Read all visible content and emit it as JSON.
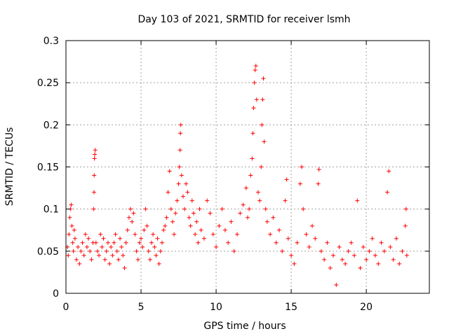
{
  "chart_data": {
    "type": "scatter",
    "title": "Day 103 of 2021, SRMTID for receiver lsmh",
    "xlabel": "GPS time / hours",
    "ylabel": "SRMTID / TECUs",
    "xlim": [
      0,
      24.2
    ],
    "ylim": [
      0,
      0.3
    ],
    "xticks": [
      0,
      5,
      10,
      15,
      20
    ],
    "xtick_labels": [
      "0",
      "5",
      "10",
      "15",
      "20"
    ],
    "yticks": [
      0,
      0.05,
      0.1,
      0.15,
      0.2,
      0.25,
      0.3
    ],
    "ytick_labels": [
      "0",
      "0.05",
      "0.1",
      "0.15",
      "0.2",
      "0.25",
      "0.3"
    ],
    "grid": true,
    "marker": "+",
    "color": "#ff0000",
    "series": [
      {
        "name": "SRMTID",
        "points": [
          [
            0.1,
            0.055
          ],
          [
            0.15,
            0.045
          ],
          [
            0.2,
            0.07
          ],
          [
            0.25,
            0.09
          ],
          [
            0.3,
            0.1
          ],
          [
            0.35,
            0.105
          ],
          [
            0.4,
            0.08
          ],
          [
            0.45,
            0.06
          ],
          [
            0.5,
            0.05
          ],
          [
            0.55,
            0.075
          ],
          [
            0.6,
            0.065
          ],
          [
            0.7,
            0.04
          ],
          [
            0.8,
            0.055
          ],
          [
            0.9,
            0.035
          ],
          [
            1.0,
            0.05
          ],
          [
            1.1,
            0.06
          ],
          [
            1.2,
            0.045
          ],
          [
            1.3,
            0.07
          ],
          [
            1.4,
            0.055
          ],
          [
            1.5,
            0.065
          ],
          [
            1.6,
            0.05
          ],
          [
            1.7,
            0.04
          ],
          [
            1.8,
            0.06
          ],
          [
            1.85,
            0.1
          ],
          [
            1.87,
            0.12
          ],
          [
            1.88,
            0.14
          ],
          [
            1.9,
            0.16
          ],
          [
            1.92,
            0.165
          ],
          [
            1.95,
            0.17
          ],
          [
            2.0,
            0.06
          ],
          [
            2.1,
            0.05
          ],
          [
            2.2,
            0.045
          ],
          [
            2.3,
            0.07
          ],
          [
            2.4,
            0.055
          ],
          [
            2.5,
            0.065
          ],
          [
            2.6,
            0.04
          ],
          [
            2.7,
            0.05
          ],
          [
            2.8,
            0.06
          ],
          [
            2.9,
            0.035
          ],
          [
            3.0,
            0.055
          ],
          [
            3.1,
            0.045
          ],
          [
            3.2,
            0.06
          ],
          [
            3.3,
            0.07
          ],
          [
            3.4,
            0.05
          ],
          [
            3.5,
            0.04
          ],
          [
            3.6,
            0.065
          ],
          [
            3.7,
            0.055
          ],
          [
            3.8,
            0.045
          ],
          [
            3.9,
            0.03
          ],
          [
            4.0,
            0.06
          ],
          [
            4.1,
            0.075
          ],
          [
            4.2,
            0.09
          ],
          [
            4.3,
            0.1
          ],
          [
            4.4,
            0.085
          ],
          [
            4.5,
            0.095
          ],
          [
            4.6,
            0.07
          ],
          [
            4.7,
            0.05
          ],
          [
            4.8,
            0.04
          ],
          [
            4.9,
            0.06
          ],
          [
            5.0,
            0.065
          ],
          [
            5.1,
            0.055
          ],
          [
            5.2,
            0.075
          ],
          [
            5.3,
            0.1
          ],
          [
            5.4,
            0.08
          ],
          [
            5.5,
            0.05
          ],
          [
            5.6,
            0.04
          ],
          [
            5.7,
            0.06
          ],
          [
            5.8,
            0.07
          ],
          [
            5.9,
            0.055
          ],
          [
            6.0,
            0.045
          ],
          [
            6.1,
            0.065
          ],
          [
            6.2,
            0.035
          ],
          [
            6.3,
            0.05
          ],
          [
            6.4,
            0.06
          ],
          [
            6.5,
            0.075
          ],
          [
            6.6,
            0.08
          ],
          [
            6.7,
            0.09
          ],
          [
            6.8,
            0.12
          ],
          [
            6.9,
            0.145
          ],
          [
            7.0,
            0.1
          ],
          [
            7.1,
            0.085
          ],
          [
            7.2,
            0.07
          ],
          [
            7.3,
            0.095
          ],
          [
            7.4,
            0.11
          ],
          [
            7.5,
            0.13
          ],
          [
            7.55,
            0.15
          ],
          [
            7.6,
            0.17
          ],
          [
            7.62,
            0.19
          ],
          [
            7.65,
            0.2
          ],
          [
            7.7,
            0.14
          ],
          [
            7.8,
            0.115
          ],
          [
            7.9,
            0.1
          ],
          [
            8.0,
            0.13
          ],
          [
            8.1,
            0.12
          ],
          [
            8.2,
            0.09
          ],
          [
            8.3,
            0.08
          ],
          [
            8.4,
            0.11
          ],
          [
            8.5,
            0.095
          ],
          [
            8.6,
            0.07
          ],
          [
            8.7,
            0.085
          ],
          [
            8.8,
            0.06
          ],
          [
            8.9,
            0.1
          ],
          [
            9.0,
            0.075
          ],
          [
            9.2,
            0.065
          ],
          [
            9.4,
            0.11
          ],
          [
            9.6,
            0.095
          ],
          [
            9.8,
            0.07
          ],
          [
            10.0,
            0.055
          ],
          [
            10.2,
            0.08
          ],
          [
            10.4,
            0.1
          ],
          [
            10.6,
            0.075
          ],
          [
            10.8,
            0.06
          ],
          [
            11.0,
            0.085
          ],
          [
            11.2,
            0.05
          ],
          [
            11.4,
            0.07
          ],
          [
            11.6,
            0.095
          ],
          [
            11.8,
            0.105
          ],
          [
            12.0,
            0.125
          ],
          [
            12.1,
            0.09
          ],
          [
            12.2,
            0.1
          ],
          [
            12.3,
            0.14
          ],
          [
            12.4,
            0.16
          ],
          [
            12.45,
            0.19
          ],
          [
            12.5,
            0.22
          ],
          [
            12.55,
            0.25
          ],
          [
            12.6,
            0.265
          ],
          [
            12.65,
            0.27
          ],
          [
            12.7,
            0.23
          ],
          [
            12.8,
            0.12
          ],
          [
            12.9,
            0.11
          ],
          [
            13.0,
            0.15
          ],
          [
            13.05,
            0.2
          ],
          [
            13.1,
            0.23
          ],
          [
            13.15,
            0.255
          ],
          [
            13.2,
            0.18
          ],
          [
            13.3,
            0.1
          ],
          [
            13.4,
            0.085
          ],
          [
            13.6,
            0.07
          ],
          [
            13.8,
            0.09
          ],
          [
            14.0,
            0.06
          ],
          [
            14.2,
            0.075
          ],
          [
            14.4,
            0.05
          ],
          [
            14.6,
            0.11
          ],
          [
            14.7,
            0.135
          ],
          [
            14.8,
            0.065
          ],
          [
            15.0,
            0.045
          ],
          [
            15.2,
            0.035
          ],
          [
            15.4,
            0.06
          ],
          [
            15.6,
            0.13
          ],
          [
            15.7,
            0.15
          ],
          [
            15.8,
            0.1
          ],
          [
            16.0,
            0.07
          ],
          [
            16.2,
            0.055
          ],
          [
            16.4,
            0.08
          ],
          [
            16.6,
            0.065
          ],
          [
            16.8,
            0.13
          ],
          [
            16.85,
            0.147
          ],
          [
            17.0,
            0.05
          ],
          [
            17.2,
            0.04
          ],
          [
            17.4,
            0.06
          ],
          [
            17.6,
            0.03
          ],
          [
            17.8,
            0.045
          ],
          [
            18.0,
            0.01
          ],
          [
            18.2,
            0.055
          ],
          [
            18.4,
            0.04
          ],
          [
            18.6,
            0.035
          ],
          [
            18.8,
            0.05
          ],
          [
            19.0,
            0.06
          ],
          [
            19.2,
            0.045
          ],
          [
            19.4,
            0.11
          ],
          [
            19.6,
            0.03
          ],
          [
            19.8,
            0.055
          ],
          [
            20.0,
            0.04
          ],
          [
            20.2,
            0.05
          ],
          [
            20.4,
            0.065
          ],
          [
            20.6,
            0.045
          ],
          [
            20.8,
            0.035
          ],
          [
            21.0,
            0.06
          ],
          [
            21.2,
            0.05
          ],
          [
            21.4,
            0.12
          ],
          [
            21.5,
            0.145
          ],
          [
            21.6,
            0.055
          ],
          [
            21.8,
            0.04
          ],
          [
            22.0,
            0.065
          ],
          [
            22.2,
            0.035
          ],
          [
            22.4,
            0.05
          ],
          [
            22.6,
            0.08
          ],
          [
            22.65,
            0.1
          ],
          [
            22.7,
            0.045
          ]
        ]
      }
    ]
  }
}
